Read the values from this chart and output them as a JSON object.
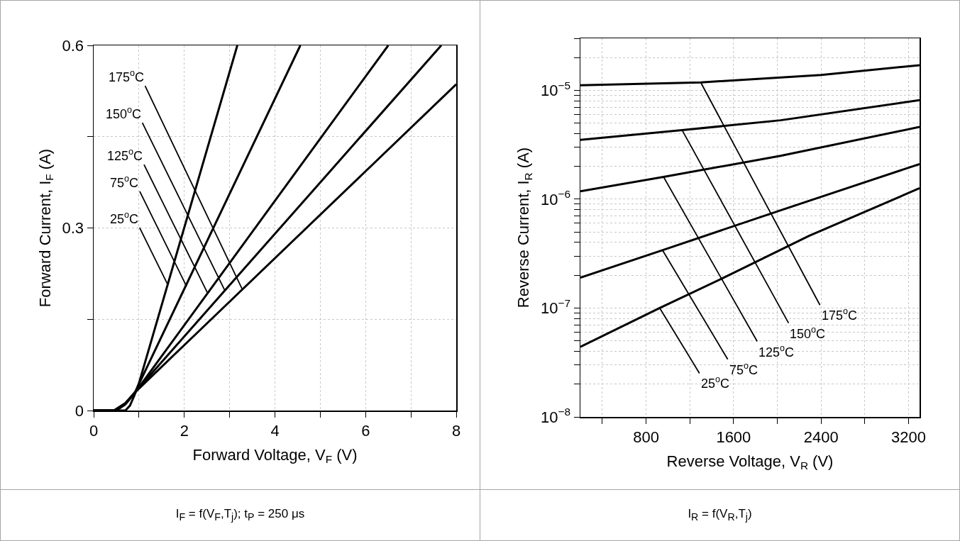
{
  "chart_data": [
    {
      "type": "line",
      "xlabel": "Forward Voltage, V$_{F}$ (V)",
      "ylabel": "Forward Current, I$_{F}$ (A)",
      "xlim": [
        0,
        8
      ],
      "ylim": [
        0,
        0.6
      ],
      "xticks": [
        0,
        {
          "value": 1,
          "label": null
        },
        2,
        {
          "value": 3,
          "label": null
        },
        4,
        {
          "value": 5,
          "label": null
        },
        6,
        {
          "value": 7,
          "label": null
        },
        8
      ],
      "yticks": [
        0,
        {
          "value": 0.15,
          "label": null
        },
        0.3,
        {
          "value": 0.45,
          "label": null
        },
        0.6
      ],
      "grid": true,
      "marker": "none",
      "line_style": "solid",
      "series": [
        {
          "color": "#000000",
          "x": [
            0,
            0.7,
            0.8,
            0.9,
            1.0,
            3.17
          ],
          "values": [
            0,
            0,
            0.008,
            0.025,
            0.045,
            0.6
          ]
        },
        {
          "color": "#000000",
          "x": [
            0,
            0.5,
            0.7,
            0.9,
            4.56
          ],
          "values": [
            0,
            0,
            0.01,
            0.028,
            0.6
          ]
        },
        {
          "color": "#000000",
          "x": [
            0,
            0.45,
            0.7,
            0.9,
            6.5
          ],
          "values": [
            0,
            0,
            0.012,
            0.028,
            0.6
          ]
        },
        {
          "color": "#000000",
          "x": [
            0,
            0.45,
            0.7,
            0.9,
            7.67
          ],
          "values": [
            0,
            0,
            0.012,
            0.029,
            0.6
          ]
        },
        {
          "color": "#000000",
          "x": [
            0,
            0.45,
            0.7,
            0.9,
            8
          ],
          "values": [
            0,
            0,
            0.012,
            0.029,
            0.536
          ]
        }
      ],
      "annotations": [
        {
          "text": "25$^{o}$C",
          "x": 1.64,
          "y": 0.206
        },
        {
          "text": "75$^{o}$C",
          "x": 2.05,
          "y": 0.204
        },
        {
          "text": "125$^{o}$C",
          "x": 2.52,
          "y": 0.192
        },
        {
          "text": "150$^{o}$C",
          "x": 2.89,
          "y": 0.198
        },
        {
          "text": "175$^{o}$C",
          "x": 3.28,
          "y": 0.199
        },
        "I$_{F}$ = f(V$_{F}$,T$_{j}$); t$_{P}$ = 250 μs"
      ]
    },
    {
      "type": "line",
      "xlabel": "Reverse Voltage, V$_{R}$ (V)",
      "ylabel": "Reverse Current, I$_{R}$ (A)",
      "log": "y",
      "xlim": [
        200,
        3300
      ],
      "ylim": [
        1e-08,
        3e-05
      ],
      "xticks": [
        {
          "value": 400,
          "label": null
        },
        800,
        {
          "value": 1200,
          "label": null
        },
        1600,
        {
          "value": 2000,
          "label": null
        },
        2400,
        {
          "value": 2800,
          "label": null
        },
        3200
      ],
      "yticks": [
        {
          "value": 1e-08,
          "label": "10$^{−8}$"
        },
        {
          "value": 2e-08,
          "label": null
        },
        {
          "value": 3e-08,
          "label": null
        },
        {
          "value": 4e-08,
          "label": null
        },
        {
          "value": 5e-08,
          "label": null
        },
        {
          "value": 6e-08,
          "label": null
        },
        {
          "value": 7e-08,
          "label": null
        },
        {
          "value": 8e-08,
          "label": null
        },
        {
          "value": 9e-08,
          "label": null
        },
        {
          "value": 1e-07,
          "label": "10$^{−7}$"
        },
        {
          "value": 2e-07,
          "label": null
        },
        {
          "value": 3e-07,
          "label": null
        },
        {
          "value": 4e-07,
          "label": null
        },
        {
          "value": 5e-07,
          "label": null
        },
        {
          "value": 6e-07,
          "label": null
        },
        {
          "value": 7e-07,
          "label": null
        },
        {
          "value": 8e-07,
          "label": null
        },
        {
          "value": 9e-07,
          "label": null
        },
        {
          "value": 1e-06,
          "label": "10$^{−6}$"
        },
        {
          "value": 2e-06,
          "label": null
        },
        {
          "value": 3e-06,
          "label": null
        },
        {
          "value": 4e-06,
          "label": null
        },
        {
          "value": 5e-06,
          "label": null
        },
        {
          "value": 6e-06,
          "label": null
        },
        {
          "value": 7e-06,
          "label": null
        },
        {
          "value": 8e-06,
          "label": null
        },
        {
          "value": 9e-06,
          "label": null
        },
        {
          "value": 1e-05,
          "label": "10$^{−5}$"
        },
        {
          "value": 2e-05,
          "label": null
        },
        {
          "value": 3e-05,
          "label": null
        }
      ],
      "grid": true,
      "marker": "none",
      "line_style": "solid",
      "series": [
        {
          "color": "#000000",
          "x": [
            200,
            1300,
            2400,
            3300
          ],
          "values": [
            1.11e-05,
            1.18e-05,
            1.38e-05,
            1.7e-05
          ]
        },
        {
          "color": "#000000",
          "x": [
            200,
            1130,
            2030,
            3300
          ],
          "values": [
            3.5e-06,
            4.3e-06,
            5.3e-06,
            8.1e-06
          ]
        },
        {
          "color": "#000000",
          "x": [
            200,
            960,
            2030,
            3300
          ],
          "values": [
            1.18e-06,
            1.6e-06,
            2.5e-06,
            4.6e-06
          ]
        },
        {
          "color": "#000000",
          "x": [
            200,
            950,
            2030,
            3300
          ],
          "values": [
            1.9e-07,
            3.4e-07,
            7.9e-07,
            2.1e-06
          ]
        },
        {
          "color": "#000000",
          "x": [
            200,
            925,
            1510,
            2290,
            3300
          ],
          "values": [
            4.4e-08,
            1e-07,
            1.9e-07,
            4.6e-07,
            1.26e-06
          ]
        }
      ],
      "annotations": [
        {
          "text": "25$^{o}$C",
          "x": 925,
          "y": 1e-07
        },
        {
          "text": "75$^{o}$C",
          "x": 950,
          "y": 3.4e-07
        },
        {
          "text": "125$^{o}$C",
          "x": 960,
          "y": 1.6e-06
        },
        {
          "text": "150$^{o}$C",
          "x": 1130,
          "y": 4.3e-06
        },
        {
          "text": "175$^{o}$C",
          "x": 1300,
          "y": 1.18e-05
        },
        "I$_{R}$ = f(V$_{R}$,T$_{j}$)"
      ]
    }
  ]
}
